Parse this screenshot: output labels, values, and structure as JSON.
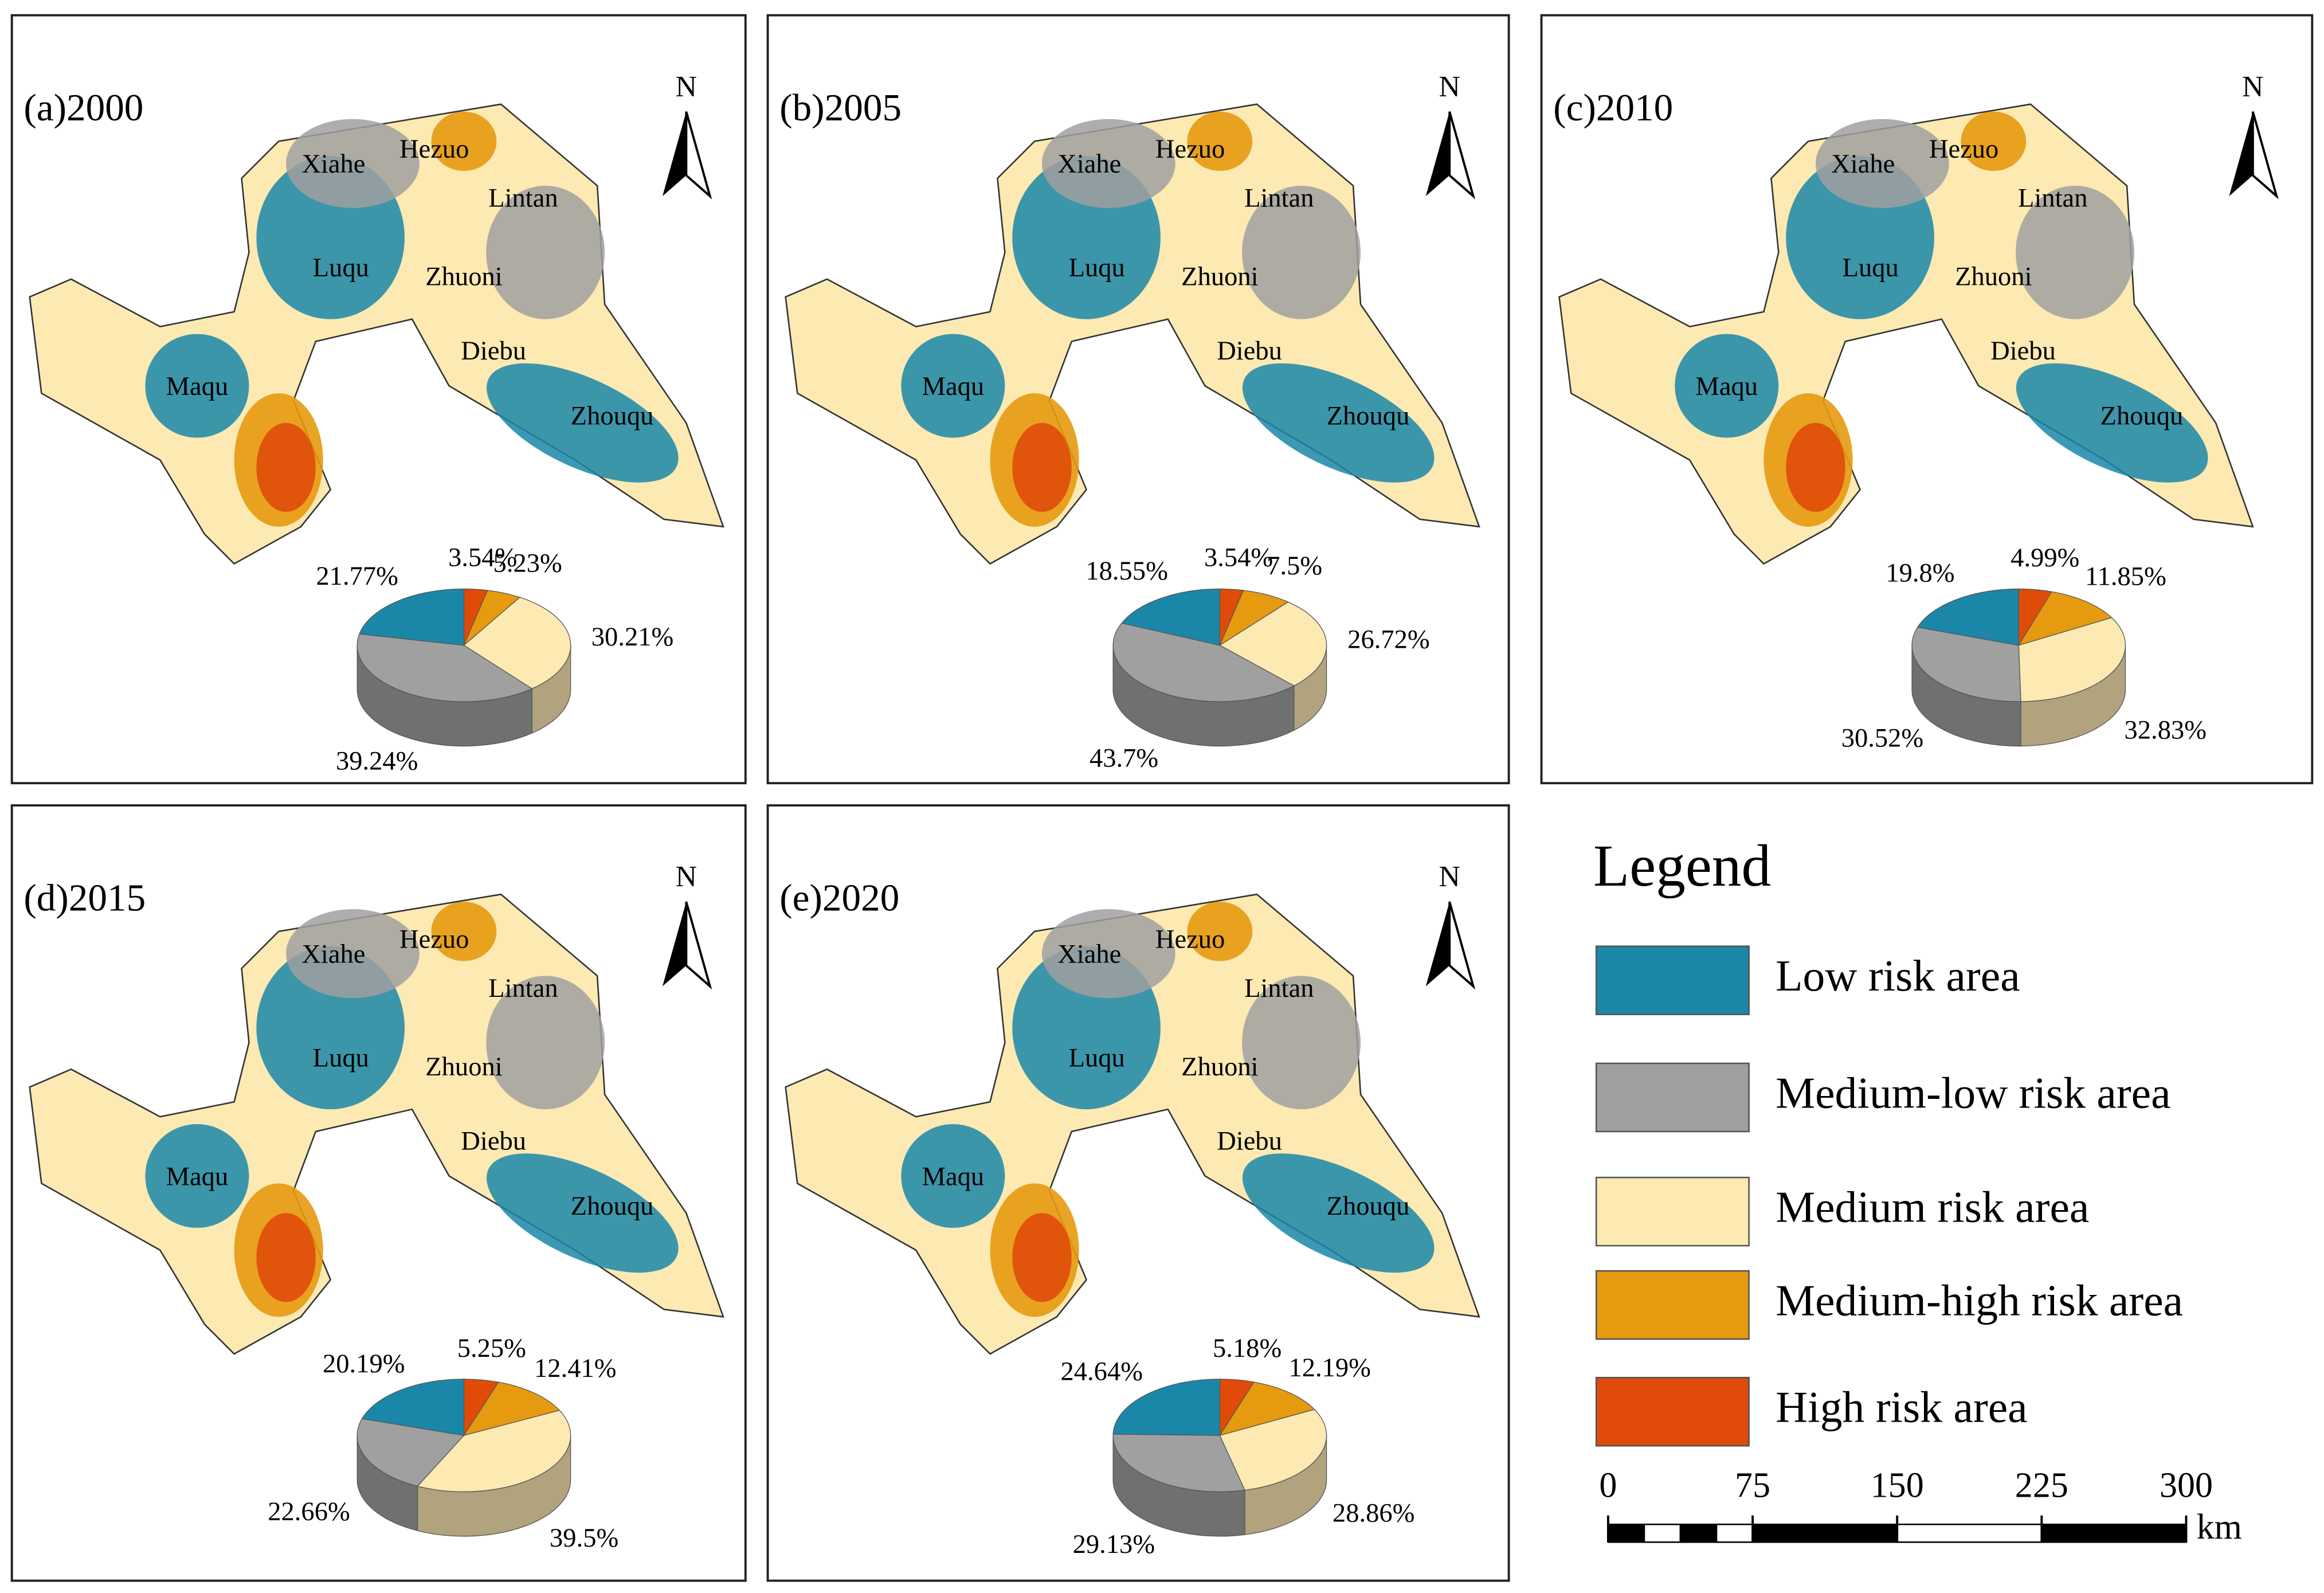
{
  "panels": [
    {
      "label": "(a)2000",
      "regions": [
        "Xiahe",
        "Hezuo",
        "Lintan",
        "Luqu",
        "Zhuoni",
        "Diebu",
        "Maqu",
        "Zhouqu"
      ],
      "pie": {
        "values": [
          21.77,
          39.24,
          30.21,
          5.23,
          3.54
        ],
        "value_labels": [
          "21.77%",
          "39.24%",
          "30.21%",
          "5.23%",
          "3.54%"
        ]
      }
    },
    {
      "label": "(b)2005",
      "regions": [
        "Xiahe",
        "Hezuo",
        "Lintan",
        "Luqu",
        "Zhuoni",
        "Diebu",
        "Maqu",
        "Zhouqu"
      ],
      "pie": {
        "values": [
          18.55,
          43.7,
          26.72,
          7.5,
          3.54
        ],
        "value_labels": [
          "18.55%",
          "43.7%",
          "26.72%",
          "7.5%",
          "3.54%"
        ]
      }
    },
    {
      "label": "(c)2010",
      "regions": [
        "Xiahe",
        "Hezuo",
        "Lintan",
        "Luqu",
        "Zhuoni",
        "Diebu",
        "Maqu",
        "Zhouqu"
      ],
      "pie": {
        "values": [
          19.8,
          30.52,
          32.83,
          11.85,
          4.99
        ],
        "value_labels": [
          "19.8%",
          "30.52%",
          "32.83%",
          "11.85%",
          "4.99%"
        ]
      }
    },
    {
      "label": "(d)2015",
      "regions": [
        "Xiahe",
        "Hezuo",
        "Lintan",
        "Luqu",
        "Zhuoni",
        "Diebu",
        "Maqu",
        "Zhouqu"
      ],
      "pie": {
        "values": [
          20.19,
          22.66,
          39.5,
          12.41,
          5.25
        ],
        "value_labels": [
          "20.19%",
          "22.66%",
          "39.5%",
          "12.41%",
          "5.25%"
        ]
      }
    },
    {
      "label": "(e)2020",
      "regions": [
        "Xiahe",
        "Hezuo",
        "Lintan",
        "Luqu",
        "Zhuoni",
        "Diebu",
        "Maqu",
        "Zhouqu"
      ],
      "pie": {
        "values": [
          24.64,
          29.13,
          28.86,
          12.19,
          5.18
        ],
        "value_labels": [
          "24.64%",
          "29.13%",
          "28.86%",
          "12.19%",
          "5.18%"
        ]
      }
    }
  ],
  "north": "N",
  "legend": {
    "title": "Legend",
    "items": [
      {
        "label": "Low risk area",
        "color": "#1a87a8"
      },
      {
        "label": "Medium-low risk area",
        "color": "#a0a0a0"
      },
      {
        "label": "Medium risk area",
        "color": "#fde9b2"
      },
      {
        "label": "Medium-high risk area",
        "color": "#e59a0f"
      },
      {
        "label": "High risk area",
        "color": "#e04b0a"
      }
    ]
  },
  "scale_bar": {
    "ticks": [
      0,
      75,
      150,
      225,
      300
    ],
    "xlim": [
      0,
      300
    ],
    "unit": "km"
  }
}
